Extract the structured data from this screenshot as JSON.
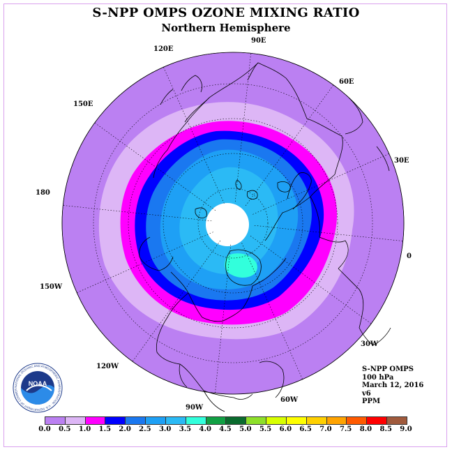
{
  "header": {
    "title": "S-NPP OMPS OZONE MIXING RATIO",
    "subtitle": "Northern Hemisphere"
  },
  "map": {
    "projection": "north polar stereographic",
    "longitude_labels": [
      "90E",
      "60E",
      "30E",
      "0",
      "30W",
      "60W",
      "90W",
      "120W",
      "150W",
      "180",
      "150E",
      "120E"
    ],
    "center_fill_color": "#ffffff",
    "coastline_color": "#000000",
    "gridline_style": "dotted"
  },
  "info": {
    "instrument": "S-NPP OMPS",
    "level": "100 hPa",
    "date": "March 12, 2016",
    "version": "v6",
    "units": "PPM"
  },
  "colorbar": {
    "ticks": [
      "0.0",
      "0.5",
      "1.0",
      "1.5",
      "2.0",
      "2.5",
      "3.0",
      "3.5",
      "4.0",
      "4.5",
      "5.0",
      "5.5",
      "6.0",
      "6.5",
      "7.0",
      "7.5",
      "8.0",
      "8.5",
      "9.0"
    ],
    "colors": [
      "#bb80f2",
      "#ddb6f6",
      "#ff00ff",
      "#0000ff",
      "#1a78f0",
      "#1ea0f5",
      "#2bbaf5",
      "#32ffdc",
      "#11a044",
      "#0a6b2e",
      "#8ee02a",
      "#d8ff00",
      "#ffff00",
      "#ffd000",
      "#ffa300",
      "#ff5a00",
      "#ff0000",
      "#a05a3c"
    ]
  },
  "logo": {
    "text": "NOAA",
    "ring_text": "NATIONAL OCEANIC AND ATMOSPHERIC ADMINISTRATION · U.S. DEPARTMENT OF COMMERCE"
  }
}
